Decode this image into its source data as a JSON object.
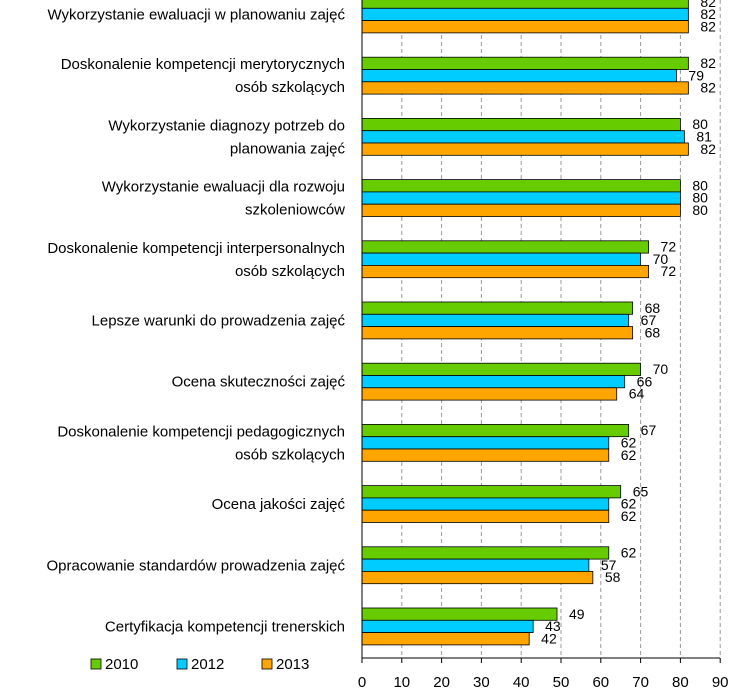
{
  "chart_data": {
    "type": "bar",
    "orientation": "horizontal",
    "title": "",
    "xlabel": "",
    "ylabel": "",
    "xlim": [
      0,
      90
    ],
    "ticks": [
      0,
      10,
      20,
      30,
      40,
      50,
      60,
      70,
      80,
      90
    ],
    "grid": true,
    "legend_position": "bottom-left",
    "categories": [
      [
        "Wykorzystanie ewaluacji w planowaniu zajęć"
      ],
      [
        "Doskonalenie kompetencji merytorycznych",
        "osób szkolących"
      ],
      [
        "Wykorzystanie diagnozy potrzeb do",
        "planowania zajęć"
      ],
      [
        "Wykorzystanie ewaluacji dla rozwoju",
        "szkoleniowców"
      ],
      [
        "Doskonalenie kompetencji interpersonalnych",
        "osób szkolących"
      ],
      [
        "Lepsze warunki do prowadzenia zajęć"
      ],
      [
        "Ocena skuteczności zajęć"
      ],
      [
        "Doskonalenie kompetencji pedagogicznych",
        "osób szkolących"
      ],
      [
        "Ocena jakości zajęć"
      ],
      [
        "Opracowanie standardów prowadzenia zajęć"
      ],
      [
        "Certyfikacja kompetencji trenerskich"
      ]
    ],
    "series": [
      {
        "name": "2010",
        "color": "#66cc00",
        "values": [
          82,
          82,
          80,
          80,
          72,
          68,
          70,
          67,
          65,
          62,
          49
        ]
      },
      {
        "name": "2012",
        "color": "#00ccff",
        "values": [
          82,
          79,
          81,
          80,
          70,
          67,
          66,
          62,
          62,
          57,
          43
        ]
      },
      {
        "name": "2013",
        "color": "#ffa500",
        "values": [
          82,
          82,
          82,
          80,
          72,
          68,
          64,
          62,
          62,
          58,
          42
        ]
      }
    ]
  }
}
